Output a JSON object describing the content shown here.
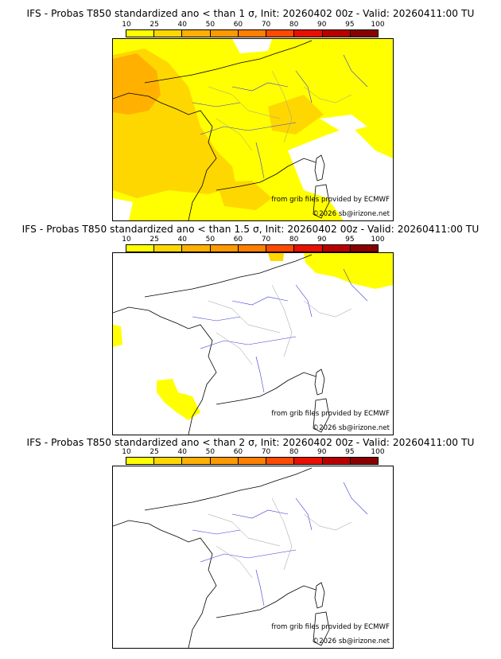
{
  "colorbar": {
    "ticks": [
      "10",
      "25",
      "40",
      "50",
      "60",
      "70",
      "80",
      "90",
      "95",
      "100"
    ],
    "colors": [
      "#ffff00",
      "#ffd700",
      "#ffb000",
      "#ff9900",
      "#ff7f00",
      "#ff4a00",
      "#e81000",
      "#b80000",
      "#880000"
    ]
  },
  "panels": [
    {
      "title": "IFS - Probas T850  standardized ano < than 1 σ, Init: 20260402 00z - Valid: 20260411:00 TU",
      "credit_source": "from grib files provided by ECMWF",
      "credit_copyright": "©2026 sb@irizone.net",
      "coverage": "extensive"
    },
    {
      "title": "IFS - Probas T850  standardized ano < than 1.5 σ, Init: 20260402 00z - Valid: 20260411:00 TU",
      "credit_source": "from grib files provided by ECMWF",
      "credit_copyright": "©2026 sb@irizone.net",
      "coverage": "patchy"
    },
    {
      "title": "IFS - Probas T850  standardized ano < than 2 σ, Init: 20260402 00z - Valid: 20260411:00 TU",
      "credit_source": "from grib files provided by ECMWF",
      "credit_copyright": "©2026 sb@irizone.net",
      "coverage": "none"
    }
  ]
}
